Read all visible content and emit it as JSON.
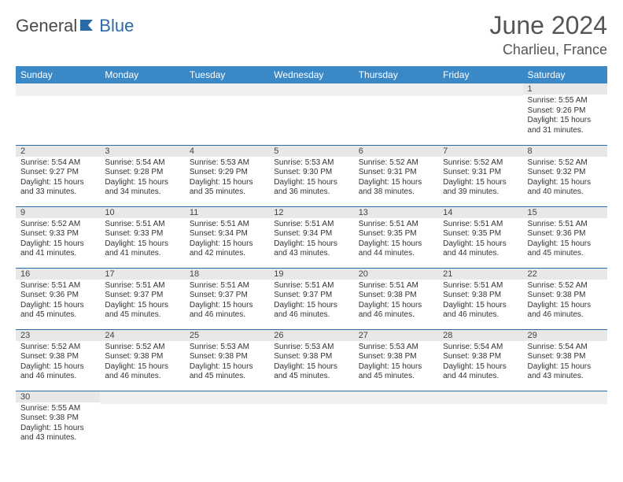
{
  "brand": {
    "part1": "General",
    "part2": "Blue"
  },
  "title": "June 2024",
  "location": "Charlieu, France",
  "colors": {
    "header_bg": "#3b88c6",
    "row_divider": "#2b6aa8",
    "daynum_bg": "#e8e8e8",
    "brand_gray": "#4a4a4a",
    "brand_blue": "#2b6aa8"
  },
  "weekdays": [
    "Sunday",
    "Monday",
    "Tuesday",
    "Wednesday",
    "Thursday",
    "Friday",
    "Saturday"
  ],
  "weeks": [
    [
      null,
      null,
      null,
      null,
      null,
      null,
      {
        "d": "1",
        "sr": "5:55 AM",
        "ss": "9:26 PM",
        "dl": "15 hours and 31 minutes."
      }
    ],
    [
      {
        "d": "2",
        "sr": "5:54 AM",
        "ss": "9:27 PM",
        "dl": "15 hours and 33 minutes."
      },
      {
        "d": "3",
        "sr": "5:54 AM",
        "ss": "9:28 PM",
        "dl": "15 hours and 34 minutes."
      },
      {
        "d": "4",
        "sr": "5:53 AM",
        "ss": "9:29 PM",
        "dl": "15 hours and 35 minutes."
      },
      {
        "d": "5",
        "sr": "5:53 AM",
        "ss": "9:30 PM",
        "dl": "15 hours and 36 minutes."
      },
      {
        "d": "6",
        "sr": "5:52 AM",
        "ss": "9:31 PM",
        "dl": "15 hours and 38 minutes."
      },
      {
        "d": "7",
        "sr": "5:52 AM",
        "ss": "9:31 PM",
        "dl": "15 hours and 39 minutes."
      },
      {
        "d": "8",
        "sr": "5:52 AM",
        "ss": "9:32 PM",
        "dl": "15 hours and 40 minutes."
      }
    ],
    [
      {
        "d": "9",
        "sr": "5:52 AM",
        "ss": "9:33 PM",
        "dl": "15 hours and 41 minutes."
      },
      {
        "d": "10",
        "sr": "5:51 AM",
        "ss": "9:33 PM",
        "dl": "15 hours and 41 minutes."
      },
      {
        "d": "11",
        "sr": "5:51 AM",
        "ss": "9:34 PM",
        "dl": "15 hours and 42 minutes."
      },
      {
        "d": "12",
        "sr": "5:51 AM",
        "ss": "9:34 PM",
        "dl": "15 hours and 43 minutes."
      },
      {
        "d": "13",
        "sr": "5:51 AM",
        "ss": "9:35 PM",
        "dl": "15 hours and 44 minutes."
      },
      {
        "d": "14",
        "sr": "5:51 AM",
        "ss": "9:35 PM",
        "dl": "15 hours and 44 minutes."
      },
      {
        "d": "15",
        "sr": "5:51 AM",
        "ss": "9:36 PM",
        "dl": "15 hours and 45 minutes."
      }
    ],
    [
      {
        "d": "16",
        "sr": "5:51 AM",
        "ss": "9:36 PM",
        "dl": "15 hours and 45 minutes."
      },
      {
        "d": "17",
        "sr": "5:51 AM",
        "ss": "9:37 PM",
        "dl": "15 hours and 45 minutes."
      },
      {
        "d": "18",
        "sr": "5:51 AM",
        "ss": "9:37 PM",
        "dl": "15 hours and 46 minutes."
      },
      {
        "d": "19",
        "sr": "5:51 AM",
        "ss": "9:37 PM",
        "dl": "15 hours and 46 minutes."
      },
      {
        "d": "20",
        "sr": "5:51 AM",
        "ss": "9:38 PM",
        "dl": "15 hours and 46 minutes."
      },
      {
        "d": "21",
        "sr": "5:51 AM",
        "ss": "9:38 PM",
        "dl": "15 hours and 46 minutes."
      },
      {
        "d": "22",
        "sr": "5:52 AM",
        "ss": "9:38 PM",
        "dl": "15 hours and 46 minutes."
      }
    ],
    [
      {
        "d": "23",
        "sr": "5:52 AM",
        "ss": "9:38 PM",
        "dl": "15 hours and 46 minutes."
      },
      {
        "d": "24",
        "sr": "5:52 AM",
        "ss": "9:38 PM",
        "dl": "15 hours and 46 minutes."
      },
      {
        "d": "25",
        "sr": "5:53 AM",
        "ss": "9:38 PM",
        "dl": "15 hours and 45 minutes."
      },
      {
        "d": "26",
        "sr": "5:53 AM",
        "ss": "9:38 PM",
        "dl": "15 hours and 45 minutes."
      },
      {
        "d": "27",
        "sr": "5:53 AM",
        "ss": "9:38 PM",
        "dl": "15 hours and 45 minutes."
      },
      {
        "d": "28",
        "sr": "5:54 AM",
        "ss": "9:38 PM",
        "dl": "15 hours and 44 minutes."
      },
      {
        "d": "29",
        "sr": "5:54 AM",
        "ss": "9:38 PM",
        "dl": "15 hours and 43 minutes."
      }
    ],
    [
      {
        "d": "30",
        "sr": "5:55 AM",
        "ss": "9:38 PM",
        "dl": "15 hours and 43 minutes."
      },
      null,
      null,
      null,
      null,
      null,
      null
    ]
  ],
  "labels": {
    "sunrise": "Sunrise:",
    "sunset": "Sunset:",
    "daylight": "Daylight:"
  }
}
